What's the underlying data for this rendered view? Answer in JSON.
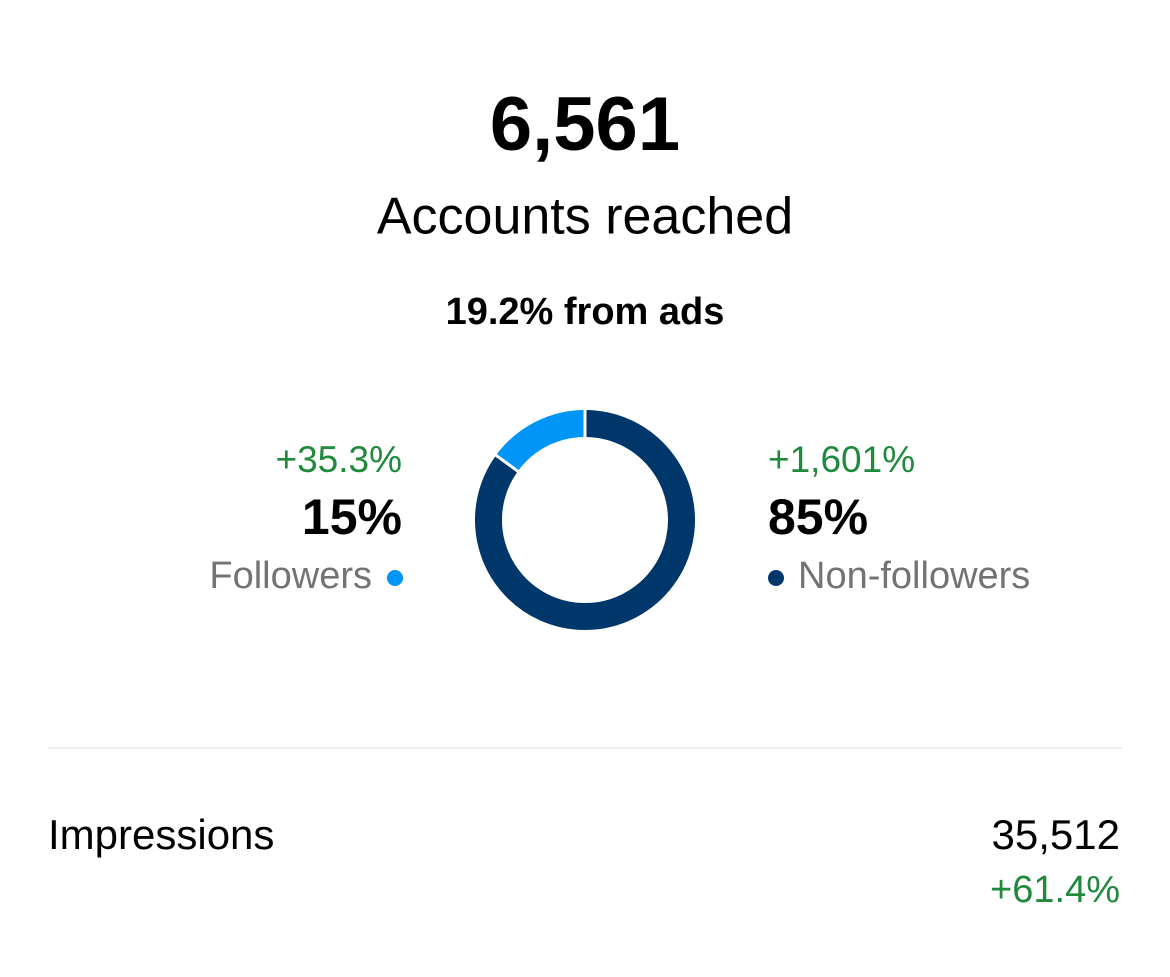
{
  "summary": {
    "value": "6,561",
    "label": "Accounts reached",
    "ads": "19.2% from ads"
  },
  "chart_data": {
    "type": "donut",
    "categories": [
      "Followers",
      "Non-followers"
    ],
    "values": [
      15,
      85
    ],
    "value_labels": [
      "15%",
      "85%"
    ],
    "changes": [
      "+35.3%",
      "+1,601%"
    ],
    "colors": [
      "#0095f6",
      "#00376b"
    ]
  },
  "impressions": {
    "label": "Impressions",
    "value": "35,512",
    "change": "+61.4%"
  }
}
